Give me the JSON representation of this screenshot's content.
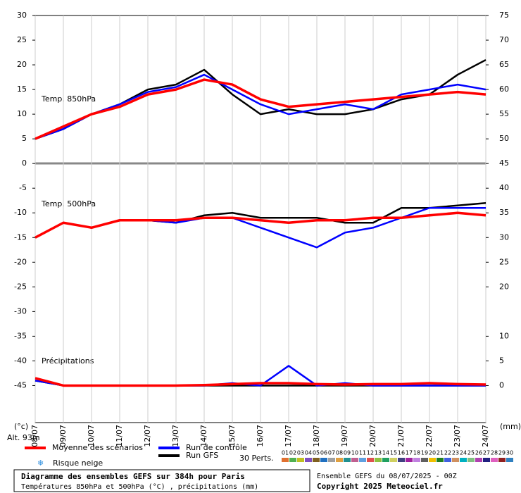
{
  "chart_data": {
    "type": "line",
    "panels": [
      "Temp. 850hPa",
      "Temp. 500hPa",
      "Précipitations"
    ],
    "y_unit": "(°c)",
    "y2_unit": "(mm)",
    "altitude": "Alt. 93m",
    "snow_risk": "Risque neige",
    "perturbations_label": "30 Perts.",
    "perturbations": [
      {
        "name": "01",
        "color": "#e07030"
      },
      {
        "name": "02",
        "color": "#50b050"
      },
      {
        "name": "03",
        "color": "#c0c020"
      },
      {
        "name": "04",
        "color": "#8050c0"
      },
      {
        "name": "05",
        "color": "#806020"
      },
      {
        "name": "06",
        "color": "#2070c0"
      },
      {
        "name": "07",
        "color": "#a0a0a0"
      },
      {
        "name": "08",
        "color": "#e0a040"
      },
      {
        "name": "09",
        "color": "#209090"
      },
      {
        "name": "10",
        "color": "#c06090"
      },
      {
        "name": "11",
        "color": "#60a0e0"
      },
      {
        "name": "12",
        "color": "#e05050"
      },
      {
        "name": "13",
        "color": "#90c040"
      },
      {
        "name": "14",
        "color": "#20a060"
      },
      {
        "name": "15",
        "color": "#d0d060"
      },
      {
        "name": "16",
        "color": "#404080"
      },
      {
        "name": "17",
        "color": "#a020a0"
      },
      {
        "name": "18",
        "color": "#c080e0"
      },
      {
        "name": "19",
        "color": "#606060"
      },
      {
        "name": "20",
        "color": "#f0c000"
      },
      {
        "name": "21",
        "color": "#208020"
      },
      {
        "name": "22",
        "color": "#4060e0"
      },
      {
        "name": "23",
        "color": "#d09060"
      },
      {
        "name": "24",
        "color": "#00b0c0"
      },
      {
        "name": "25",
        "color": "#80c080"
      },
      {
        "name": "26",
        "color": "#b040b0"
      },
      {
        "name": "27",
        "color": "#202080"
      },
      {
        "name": "28",
        "color": "#e060c0"
      },
      {
        "name": "29",
        "color": "#902020"
      },
      {
        "name": "30",
        "color": "#3080c0"
      }
    ],
    "x": [
      0,
      24,
      48,
      72,
      96,
      120,
      144,
      168,
      192,
      216,
      240,
      264,
      288,
      312,
      336,
      360,
      384
    ],
    "xlim": [
      0,
      384
    ],
    "xticks": [
      {
        "value": 0,
        "label": "08/07"
      },
      {
        "value": 24,
        "label": "09/07"
      },
      {
        "value": 48,
        "label": "10/07"
      },
      {
        "value": 72,
        "label": "11/07"
      },
      {
        "value": 96,
        "label": "12/07"
      },
      {
        "value": 120,
        "label": "13/07"
      },
      {
        "value": 144,
        "label": "14/07"
      },
      {
        "value": 168,
        "label": "15/07"
      },
      {
        "value": 192,
        "label": "16/07"
      },
      {
        "value": 216,
        "label": "17/07"
      },
      {
        "value": 240,
        "label": "18/07"
      },
      {
        "value": 264,
        "label": "19/07"
      },
      {
        "value": 288,
        "label": "20/07"
      },
      {
        "value": 312,
        "label": "21/07"
      },
      {
        "value": 336,
        "label": "22/07"
      },
      {
        "value": 360,
        "label": "23/07"
      },
      {
        "value": 384,
        "label": "24/07"
      }
    ],
    "ylim": [
      -52.5,
      30
    ],
    "yticks": [
      30,
      25,
      20,
      15,
      10,
      5,
      0,
      -5,
      -10,
      -15,
      -20,
      -25,
      -30,
      -35,
      -40,
      -45
    ],
    "y2lim": [
      -7.5,
      75
    ],
    "y2ticks": [
      75,
      70,
      65,
      60,
      55,
      50,
      45,
      40,
      35,
      30,
      25,
      20,
      10,
      5,
      0
    ],
    "series": [
      {
        "name": "Moyenne des scénarios",
        "color": "#ff0000",
        "width": 3.5,
        "t850": [
          5,
          7.5,
          10,
          11.5,
          14,
          15,
          17,
          16,
          13,
          11.5,
          12,
          12.5,
          13,
          13.5,
          14,
          14.5,
          14
        ],
        "t500": [
          -15,
          -12,
          -13,
          -11.5,
          -11.5,
          -11.5,
          -11,
          -11,
          -11.5,
          -12,
          -11.5,
          -11.5,
          -11,
          -11,
          -10.5,
          -10,
          -10.5
        ],
        "precip": [
          1.5,
          0,
          0,
          0,
          0,
          0,
          0.1,
          0.3,
          0.5,
          0.5,
          0.3,
          0.2,
          0.3,
          0.3,
          0.5,
          0.3,
          0.2
        ]
      },
      {
        "name": "Run de contrôle",
        "color": "#0000ff",
        "width": 2.5,
        "t850": [
          5,
          7,
          10,
          12,
          14.5,
          15.5,
          18,
          15,
          12,
          10,
          11,
          12,
          11,
          14,
          15,
          16,
          15
        ],
        "t500": [
          -15,
          -12,
          -13,
          -11.5,
          -11.5,
          -12,
          -11,
          -11,
          -13,
          -15,
          -17,
          -14,
          -13,
          -11,
          -9,
          -9,
          -9
        ],
        "precip": [
          1,
          0,
          0,
          0,
          0,
          0,
          0,
          0.5,
          0,
          4,
          0,
          0.5,
          0,
          0,
          0,
          0,
          0
        ]
      },
      {
        "name": "Run GFS",
        "color": "#000000",
        "width": 2.5,
        "t850": [
          5,
          7,
          10,
          12,
          15,
          16,
          19,
          14,
          10,
          11,
          10,
          10,
          11,
          13,
          14,
          18,
          21
        ],
        "t500": [
          -15,
          -12,
          -13,
          -11.5,
          -11.5,
          -12,
          -10.5,
          -10,
          -11,
          -11,
          -11,
          -12,
          -12,
          -9,
          -9,
          -8.5,
          -8
        ],
        "precip": [
          1,
          0,
          0,
          0,
          0,
          0,
          0,
          0,
          0,
          0,
          0,
          0,
          0,
          0,
          0,
          0,
          0
        ]
      }
    ],
    "footer_title": "Diagramme des ensembles GEFS sur 384h pour Paris",
    "footer_subtitle": "Températures 850hPa et 500hPa (°C) , précipitations (mm)",
    "run_info": "Ensemble GEFS du 08/07/2025 - 00Z",
    "copyright": "Copyright 2025 Meteociel.fr"
  }
}
